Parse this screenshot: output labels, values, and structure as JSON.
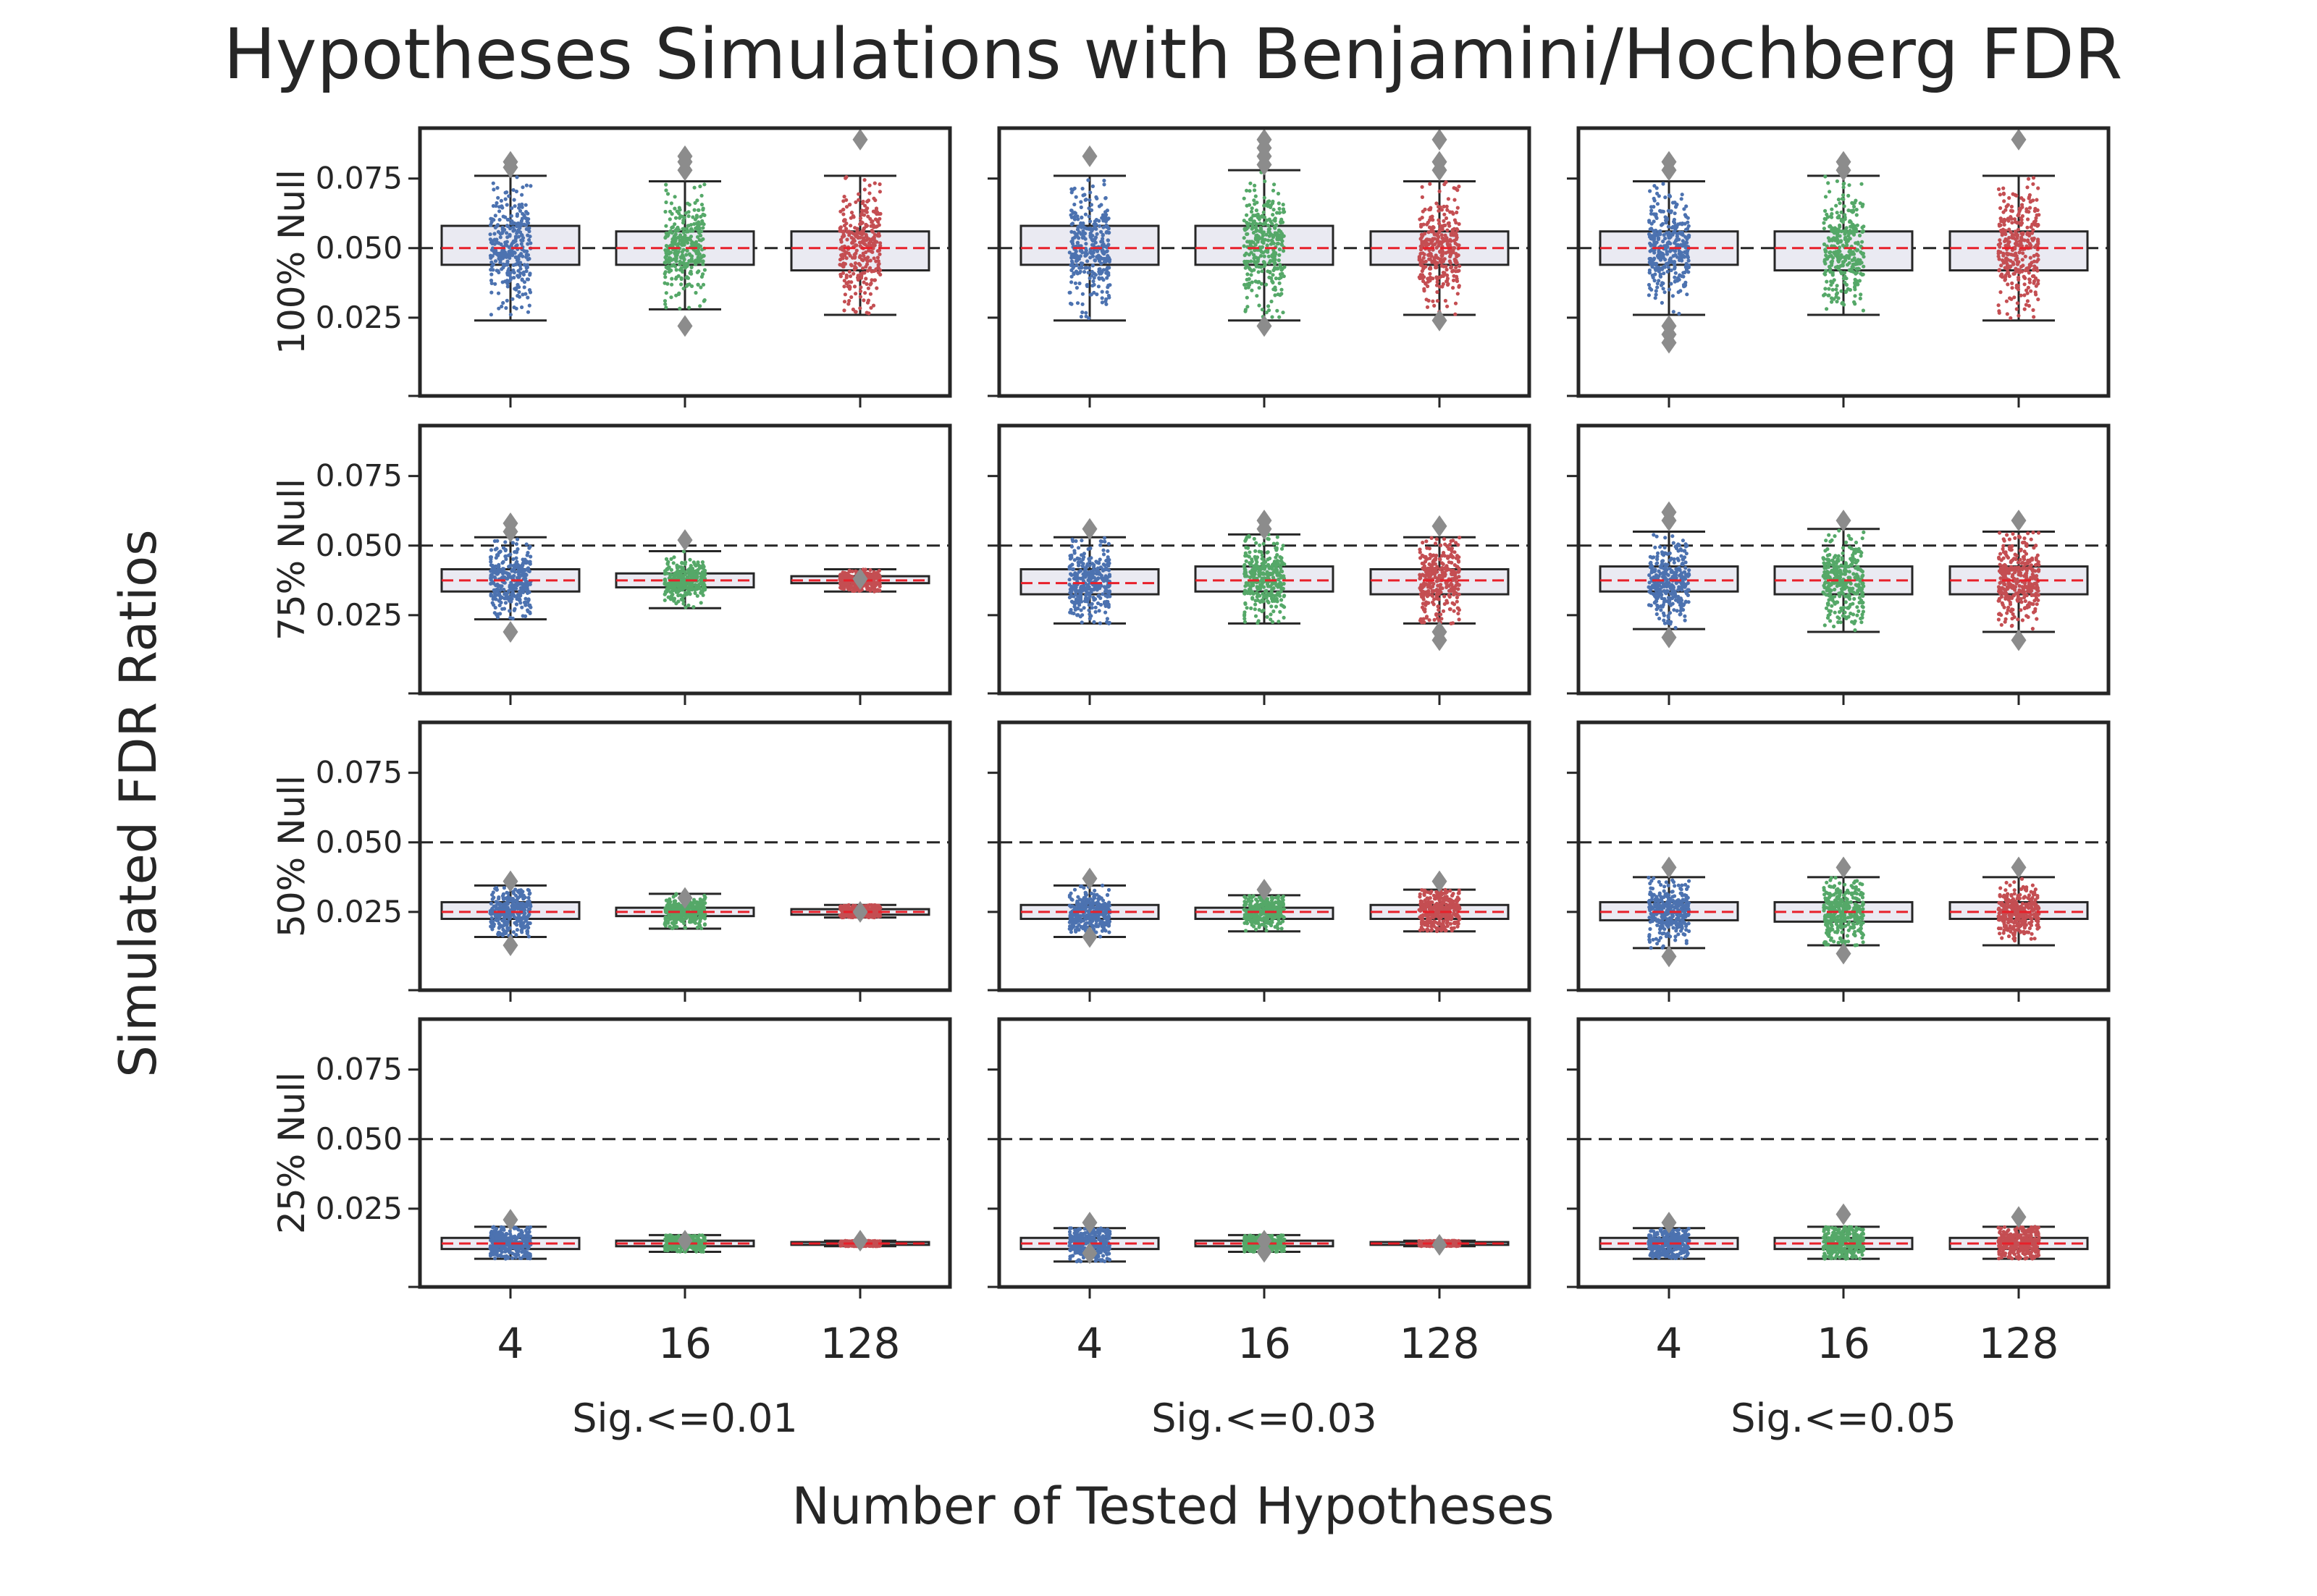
{
  "title": "Hypotheses Simulations with Benjamini/Hochberg FDR",
  "xlabel": "Number of Tested Hypotheses",
  "ylabel": "Simulated FDR Ratios",
  "colors": {
    "series": [
      "#4c72b0",
      "#55a868",
      "#c44e52"
    ],
    "box_fill": "#eaeaf2",
    "box_edge": "#262626",
    "median": "#e8202a",
    "reference": "#262626",
    "outlier": "#8c8c8c",
    "frame": "#262626"
  },
  "chart_data": {
    "type": "box",
    "grid": false,
    "ylim": [
      0.0,
      0.09
    ],
    "yticks": [
      0.025,
      0.05,
      0.075
    ],
    "ytick_labels": [
      "0.025",
      "0.050",
      "0.075"
    ],
    "reference_line": 0.05,
    "categories": [
      "4",
      "16",
      "128"
    ],
    "columns": [
      "Sig.<=0.01",
      "Sig.<=0.03",
      "Sig.<=0.05"
    ],
    "rows": [
      "100% Null",
      "75% Null",
      "50% Null",
      "25% Null"
    ],
    "panels": [
      [
        {
          "boxes": [
            {
              "q1": 0.044,
              "median": 0.05,
              "q3": 0.058,
              "whislo": 0.024,
              "whishi": 0.076,
              "outliers": [
                0.079,
                0.081
              ]
            },
            {
              "q1": 0.044,
              "median": 0.05,
              "q3": 0.056,
              "whislo": 0.028,
              "whishi": 0.074,
              "outliers": [
                0.022,
                0.078,
                0.081,
                0.083
              ]
            },
            {
              "q1": 0.042,
              "median": 0.05,
              "q3": 0.056,
              "whislo": 0.026,
              "whishi": 0.076,
              "outliers": [
                0.089
              ]
            }
          ]
        },
        {
          "boxes": [
            {
              "q1": 0.044,
              "median": 0.05,
              "q3": 0.058,
              "whislo": 0.024,
              "whishi": 0.076,
              "outliers": [
                0.083
              ]
            },
            {
              "q1": 0.044,
              "median": 0.05,
              "q3": 0.058,
              "whislo": 0.024,
              "whishi": 0.078,
              "outliers": [
                0.022,
                0.08,
                0.083,
                0.086,
                0.089
              ]
            },
            {
              "q1": 0.044,
              "median": 0.05,
              "q3": 0.056,
              "whislo": 0.026,
              "whishi": 0.074,
              "outliers": [
                0.024,
                0.078,
                0.081,
                0.089
              ]
            }
          ]
        },
        {
          "boxes": [
            {
              "q1": 0.044,
              "median": 0.05,
              "q3": 0.056,
              "whislo": 0.026,
              "whishi": 0.074,
              "outliers": [
                0.016,
                0.019,
                0.022,
                0.078,
                0.081
              ]
            },
            {
              "q1": 0.042,
              "median": 0.05,
              "q3": 0.056,
              "whislo": 0.026,
              "whishi": 0.076,
              "outliers": [
                0.078,
                0.081
              ]
            },
            {
              "q1": 0.042,
              "median": 0.05,
              "q3": 0.056,
              "whislo": 0.024,
              "whishi": 0.076,
              "outliers": [
                0.089
              ]
            }
          ]
        }
      ],
      [
        {
          "boxes": [
            {
              "q1": 0.0335,
              "median": 0.0375,
              "q3": 0.0415,
              "whislo": 0.0235,
              "whishi": 0.053,
              "outliers": [
                0.019,
                0.055,
                0.058
              ]
            },
            {
              "q1": 0.035,
              "median": 0.0375,
              "q3": 0.04,
              "whislo": 0.0275,
              "whishi": 0.048,
              "outliers": [
                0.052
              ]
            },
            {
              "q1": 0.0365,
              "median": 0.0375,
              "q3": 0.039,
              "whislo": 0.0335,
              "whishi": 0.0415,
              "outliers": [
                0.038
              ]
            }
          ]
        },
        {
          "boxes": [
            {
              "q1": 0.0325,
              "median": 0.0365,
              "q3": 0.0415,
              "whislo": 0.022,
              "whishi": 0.053,
              "outliers": [
                0.056
              ]
            },
            {
              "q1": 0.0335,
              "median": 0.0375,
              "q3": 0.0425,
              "whislo": 0.022,
              "whishi": 0.054,
              "outliers": [
                0.056,
                0.059
              ]
            },
            {
              "q1": 0.0325,
              "median": 0.0375,
              "q3": 0.0415,
              "whislo": 0.022,
              "whishi": 0.053,
              "outliers": [
                0.016,
                0.019,
                0.057
              ]
            }
          ]
        },
        {
          "boxes": [
            {
              "q1": 0.0335,
              "median": 0.0375,
              "q3": 0.0425,
              "whislo": 0.02,
              "whishi": 0.055,
              "outliers": [
                0.017,
                0.059,
                0.062
              ]
            },
            {
              "q1": 0.0325,
              "median": 0.0375,
              "q3": 0.0425,
              "whislo": 0.019,
              "whishi": 0.056,
              "outliers": [
                0.059
              ]
            },
            {
              "q1": 0.0325,
              "median": 0.0375,
              "q3": 0.0425,
              "whislo": 0.019,
              "whishi": 0.055,
              "outliers": [
                0.016,
                0.059
              ]
            }
          ]
        }
      ],
      [
        {
          "boxes": [
            {
              "q1": 0.0225,
              "median": 0.025,
              "q3": 0.0285,
              "whislo": 0.016,
              "whishi": 0.0345,
              "outliers": [
                0.013,
                0.036
              ]
            },
            {
              "q1": 0.0235,
              "median": 0.025,
              "q3": 0.0265,
              "whislo": 0.019,
              "whishi": 0.0315,
              "outliers": [
                0.03
              ]
            },
            {
              "q1": 0.024,
              "median": 0.025,
              "q3": 0.026,
              "whislo": 0.023,
              "whishi": 0.0275,
              "outliers": [
                0.025
              ]
            }
          ]
        },
        {
          "boxes": [
            {
              "q1": 0.0225,
              "median": 0.025,
              "q3": 0.0275,
              "whislo": 0.016,
              "whishi": 0.0345,
              "outliers": [
                0.016,
                0.037
              ]
            },
            {
              "q1": 0.0225,
              "median": 0.025,
              "q3": 0.0265,
              "whislo": 0.018,
              "whishi": 0.031,
              "outliers": [
                0.033
              ]
            },
            {
              "q1": 0.0225,
              "median": 0.025,
              "q3": 0.0275,
              "whislo": 0.018,
              "whishi": 0.033,
              "outliers": [
                0.036
              ]
            }
          ]
        },
        {
          "boxes": [
            {
              "q1": 0.022,
              "median": 0.025,
              "q3": 0.0285,
              "whislo": 0.012,
              "whishi": 0.0375,
              "outliers": [
                0.009,
                0.041
              ]
            },
            {
              "q1": 0.0215,
              "median": 0.025,
              "q3": 0.0285,
              "whislo": 0.013,
              "whishi": 0.0375,
              "outliers": [
                0.01,
                0.041
              ]
            },
            {
              "q1": 0.0225,
              "median": 0.025,
              "q3": 0.0285,
              "whislo": 0.013,
              "whishi": 0.0375,
              "outliers": [
                0.041
              ]
            }
          ]
        }
      ],
      [
        {
          "boxes": [
            {
              "q1": 0.0105,
              "median": 0.0125,
              "q3": 0.0145,
              "whislo": 0.007,
              "whishi": 0.0185,
              "outliers": [
                0.021
              ]
            },
            {
              "q1": 0.0115,
              "median": 0.0125,
              "q3": 0.0135,
              "whislo": 0.0095,
              "whishi": 0.0155,
              "outliers": [
                0.0135
              ]
            },
            {
              "q1": 0.012,
              "median": 0.0125,
              "q3": 0.013,
              "whislo": 0.0115,
              "whishi": 0.0135,
              "outliers": [
                0.0135
              ]
            }
          ]
        },
        {
          "boxes": [
            {
              "q1": 0.0105,
              "median": 0.0125,
              "q3": 0.0145,
              "whislo": 0.006,
              "whishi": 0.018,
              "outliers": [
                0.009,
                0.02
              ]
            },
            {
              "q1": 0.0115,
              "median": 0.0125,
              "q3": 0.0135,
              "whislo": 0.0095,
              "whishi": 0.0155,
              "outliers": [
                0.0095,
                0.0135
              ]
            },
            {
              "q1": 0.012,
              "median": 0.0125,
              "q3": 0.013,
              "whislo": 0.0115,
              "whishi": 0.0135,
              "outliers": [
                0.012
              ]
            }
          ]
        },
        {
          "boxes": [
            {
              "q1": 0.0105,
              "median": 0.0125,
              "q3": 0.0145,
              "whislo": 0.007,
              "whishi": 0.018,
              "outliers": [
                0.02
              ]
            },
            {
              "q1": 0.0105,
              "median": 0.0125,
              "q3": 0.0145,
              "whislo": 0.007,
              "whishi": 0.0185,
              "outliers": [
                0.023
              ]
            },
            {
              "q1": 0.0105,
              "median": 0.0125,
              "q3": 0.0145,
              "whislo": 0.007,
              "whishi": 0.0185,
              "outliers": [
                0.022
              ]
            }
          ]
        }
      ]
    ]
  }
}
